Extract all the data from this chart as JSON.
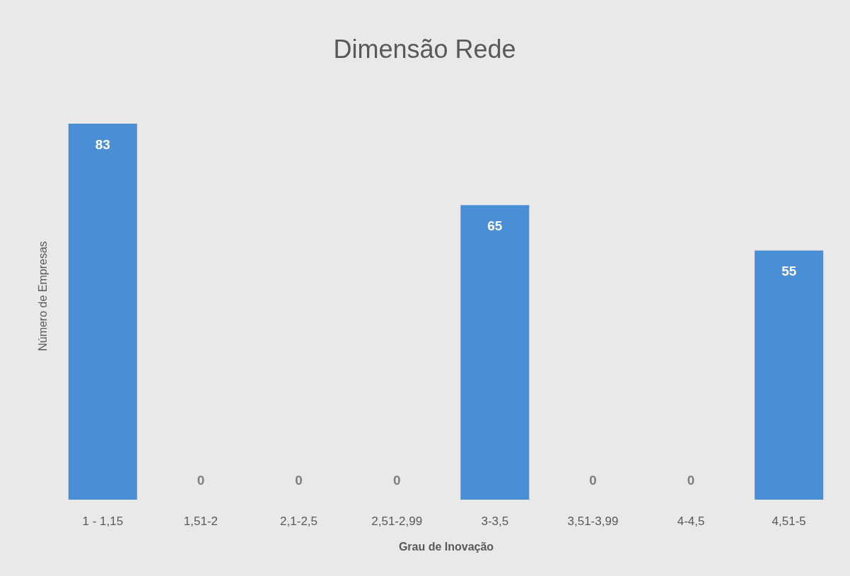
{
  "chart_data": {
    "type": "bar",
    "title": "Dimensão Rede",
    "xlabel": "Grau de Inovação",
    "ylabel": "Número de Empresas",
    "categories": [
      "1 - 1,15",
      "1,51-2",
      "2,1-2,5",
      "2,51-2,99",
      "3-3,5",
      "3,51-3,99",
      "4-4,5",
      "4,51-5"
    ],
    "values": [
      83,
      0,
      0,
      0,
      65,
      0,
      0,
      55
    ],
    "color": "#4a8fd5",
    "data_labels": true,
    "tick_labels": "x"
  }
}
